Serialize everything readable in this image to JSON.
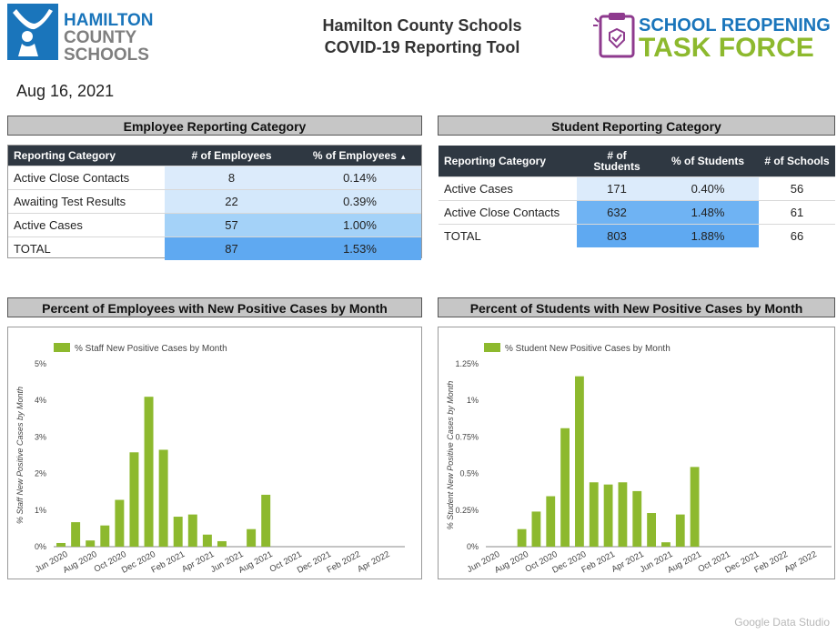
{
  "header": {
    "logo_left_lines": [
      "HAMILTON",
      "COUNTY",
      "SCHOOLS"
    ],
    "title_line1": "Hamilton County Schools",
    "title_line2": "COVID-19 Reporting Tool",
    "logo_right_line1": "SCHOOL REOPENING",
    "logo_right_line2": "TASK FORCE",
    "report_date": "Aug 16, 2021"
  },
  "employee_table": {
    "banner": "Employee Reporting Category",
    "headers": [
      "Reporting Category",
      "# of Employees",
      "% of Employees"
    ],
    "sort_indicator": "▲",
    "rows": [
      {
        "category": "Active Close Contacts",
        "count": "8",
        "percent": "0.14%"
      },
      {
        "category": "Awaiting Test Results",
        "count": "22",
        "percent": "0.39%"
      },
      {
        "category": "Active Cases",
        "count": "57",
        "percent": "1.00%"
      },
      {
        "category": "TOTAL",
        "count": "87",
        "percent": "1.53%"
      }
    ]
  },
  "student_table": {
    "banner": "Student Reporting Category",
    "headers": [
      "Reporting Category",
      "# of Students",
      "% of Students",
      "# of Schools"
    ],
    "header_count_lines": [
      "# of",
      "Students"
    ],
    "rows": [
      {
        "category": "Active Cases",
        "count": "171",
        "percent": "0.40%",
        "schools": "56"
      },
      {
        "category": "Active Close Contacts",
        "count": "632",
        "percent": "1.48%",
        "schools": "61"
      },
      {
        "category": "TOTAL",
        "count": "803",
        "percent": "1.88%",
        "schools": "66"
      }
    ]
  },
  "colors": {
    "bar": "#8db92e",
    "cell_light": "#dcebfb",
    "cell_mid": "#9fd0f7",
    "cell_strong": "#5fa9f1",
    "header_bg": "#2f3842",
    "banner_bg": "#c6c6c6",
    "logo_blue": "#1a75bb",
    "logo_purple": "#8e3a8e",
    "logo_green": "#8db92e"
  },
  "chart_data": [
    {
      "type": "bar",
      "banner": "Percent of Employees with New Positive Cases by Month",
      "legend": "% Staff New Positive Cases by Month",
      "legend_position": "top-left",
      "ylabel": "% Staff New Positive Cases by Month",
      "y_ticks": [
        "0%",
        "1%",
        "2%",
        "3%",
        "4%",
        "5%"
      ],
      "ylim": [
        0,
        5
      ],
      "x_tick_labels": [
        "Jun 2020",
        "Aug 2020",
        "Oct 2020",
        "Dec 2020",
        "Feb 2021",
        "Apr 2021",
        "Jun 2021",
        "Aug 2021",
        "Oct 2021",
        "Dec 2021",
        "Feb 2022",
        "Apr 2022"
      ],
      "categories": [
        "Jun 2020",
        "Jul 2020",
        "Aug 2020",
        "Sep 2020",
        "Oct 2020",
        "Nov 2020",
        "Dec 2020",
        "Jan 2021",
        "Feb 2021",
        "Mar 2021",
        "Apr 2021",
        "May 2021",
        "Jun 2021",
        "Jul 2021",
        "Aug 2021",
        "Sep 2021",
        "Oct 2021",
        "Nov 2021",
        "Dec 2021",
        "Jan 2022",
        "Feb 2022",
        "Mar 2022",
        "Apr 2022",
        "May 2022"
      ],
      "values": [
        0.1,
        0.67,
        0.17,
        0.58,
        1.28,
        2.58,
        4.1,
        2.65,
        0.82,
        0.88,
        0.33,
        0.15,
        0,
        0.48,
        1.42,
        0,
        0,
        0,
        0,
        0,
        0,
        0,
        0,
        0
      ]
    },
    {
      "type": "bar",
      "banner": "Percent of Students with New Positive Cases by Month",
      "legend": "% Student New Positive Cases by Month",
      "legend_position": "top-left",
      "ylabel": "% Student New Positive Cases by Month",
      "y_ticks": [
        "0%",
        "0.25%",
        "0.5%",
        "0.75%",
        "1%",
        "1.25%"
      ],
      "ylim": [
        0,
        1.25
      ],
      "x_tick_labels": [
        "Jun 2020",
        "Aug 2020",
        "Oct 2020",
        "Dec 2020",
        "Feb 2021",
        "Apr 2021",
        "Jun 2021",
        "Aug 2021",
        "Oct 2021",
        "Dec 2021",
        "Feb 2022",
        "Apr 2022"
      ],
      "categories": [
        "Jun 2020",
        "Jul 2020",
        "Aug 2020",
        "Sep 2020",
        "Oct 2020",
        "Nov 2020",
        "Dec 2020",
        "Jan 2021",
        "Feb 2021",
        "Mar 2021",
        "Apr 2021",
        "May 2021",
        "Jun 2021",
        "Jul 2021",
        "Aug 2021",
        "Sep 2021",
        "Oct 2021",
        "Nov 2021",
        "Dec 2021",
        "Jan 2022",
        "Feb 2022",
        "Mar 2022",
        "Apr 2022",
        "May 2022"
      ],
      "values": [
        0,
        0,
        0.12,
        0.24,
        0.345,
        0.81,
        1.165,
        0.44,
        0.425,
        0.44,
        0.38,
        0.23,
        0.03,
        0.22,
        0.545,
        0,
        0,
        0,
        0,
        0,
        0,
        0,
        0,
        0
      ]
    }
  ],
  "watermark": "Google Data Studio"
}
